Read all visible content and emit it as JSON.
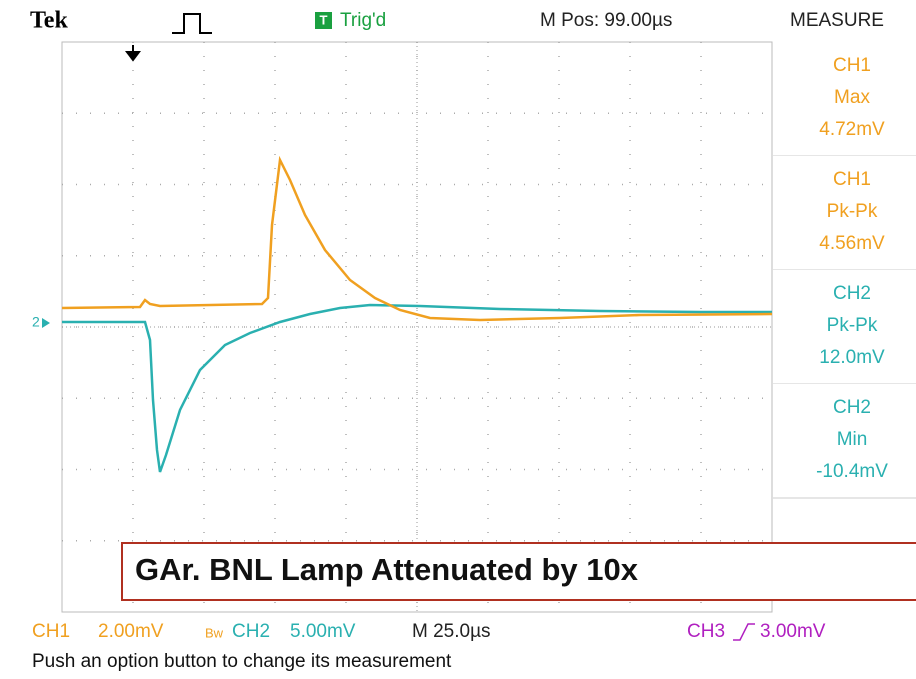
{
  "header": {
    "brand": "Tek",
    "trigger_status": "Trig'd",
    "trigger_icon": "T",
    "m_pos": "M Pos: 99.00µs",
    "panel_title": "MEASURE"
  },
  "channel_marker": "2",
  "measurements": [
    {
      "channel": "CH1",
      "type": "Max",
      "value": "4.72mV"
    },
    {
      "channel": "CH1",
      "type": "Pk-Pk",
      "value": "4.56mV"
    },
    {
      "channel": "CH2",
      "type": "Pk-Pk",
      "value": "12.0mV"
    },
    {
      "channel": "CH2",
      "type": "Min",
      "value": "-10.4mV"
    }
  ],
  "annotation": "GAr. BNL Lamp Attenuated by 10x",
  "footer": {
    "ch1": "CH1",
    "ch1_scale": "2.00mV",
    "ch1_bw": "Bw",
    "ch2": "CH2",
    "ch2_scale": "5.00mV",
    "timebase": "M 25.0µs",
    "ch3": "CH3",
    "ch3_trigger": "3.00mV"
  },
  "status": "Push an option button to change its measurement"
}
